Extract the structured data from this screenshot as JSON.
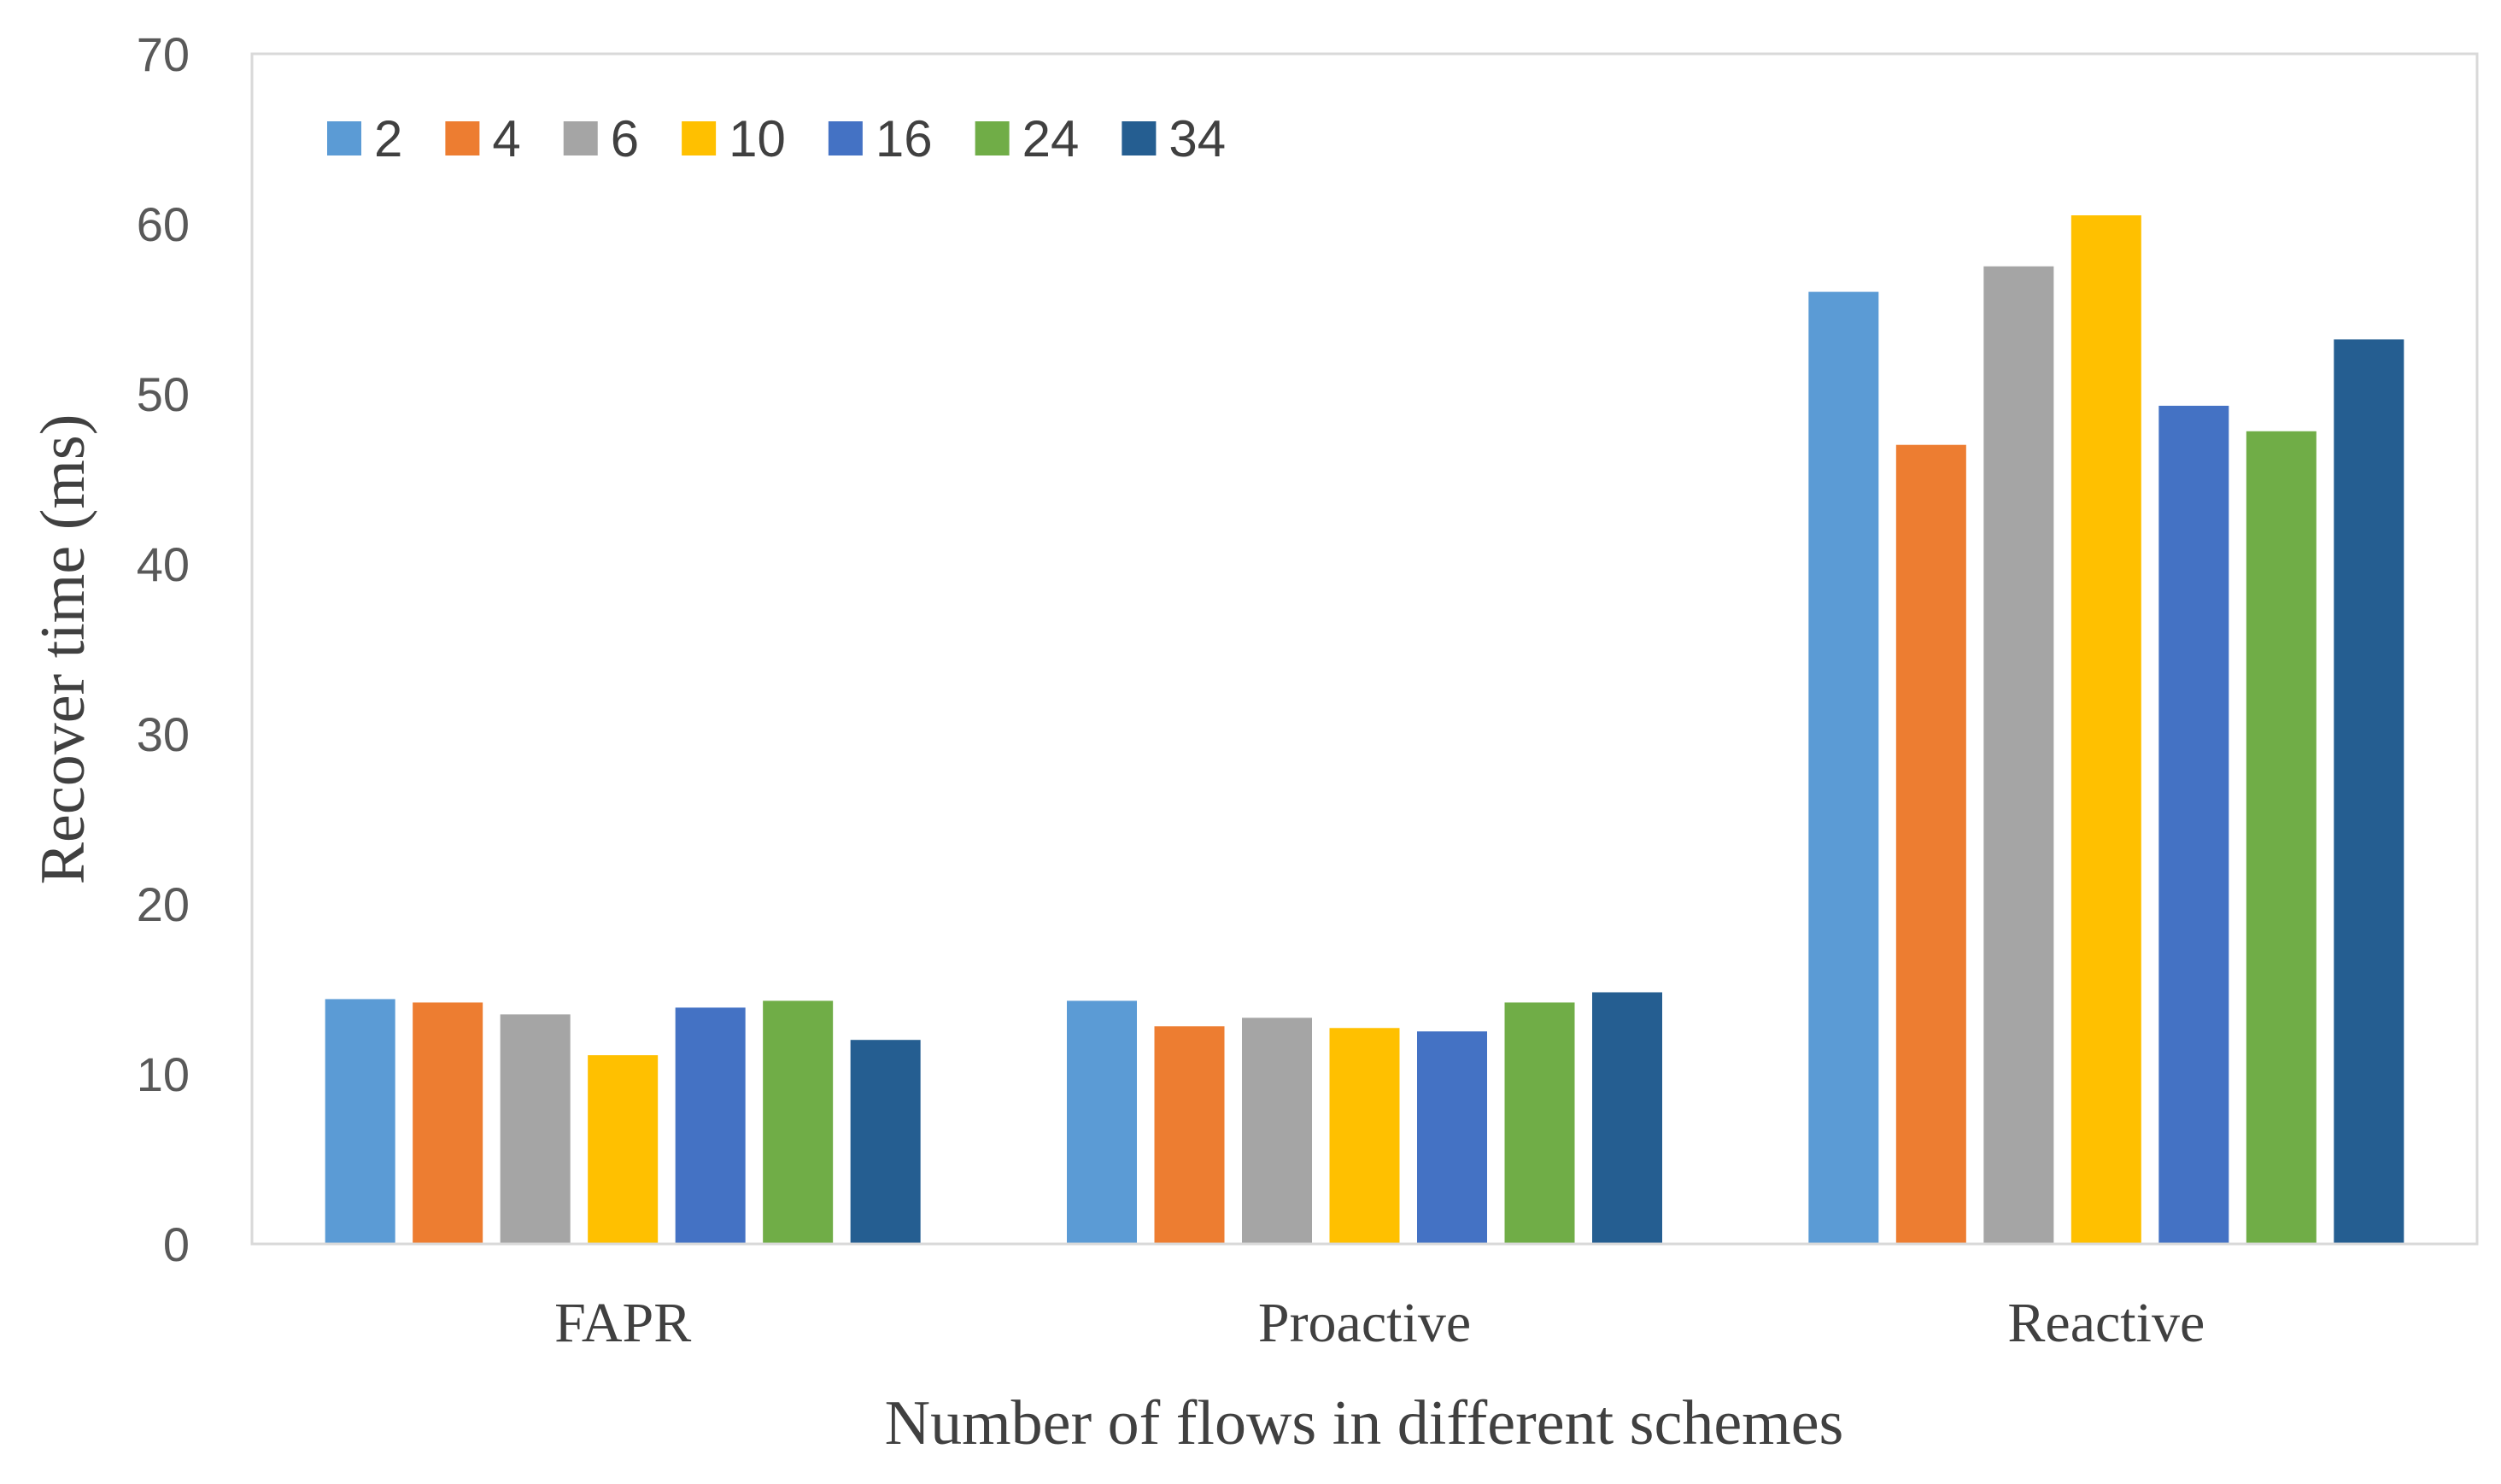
{
  "chart_data": {
    "type": "bar",
    "title": "",
    "xlabel": "Number of flows in different schemes",
    "ylabel": "Recover time (ms)",
    "ylim": [
      0,
      70
    ],
    "yticks": [
      0,
      10,
      20,
      30,
      40,
      50,
      60,
      70
    ],
    "grid": false,
    "legend_position": "top-left",
    "categories": [
      "FAPR",
      "Proactive",
      "Reactive"
    ],
    "series": [
      {
        "name": "2",
        "color": "#5B9BD5",
        "values": [
          14.4,
          14.3,
          56.0
        ]
      },
      {
        "name": "4",
        "color": "#ED7D31",
        "values": [
          14.2,
          12.8,
          47.0
        ]
      },
      {
        "name": "6",
        "color": "#A5A5A5",
        "values": [
          13.5,
          13.3,
          57.5
        ]
      },
      {
        "name": "10",
        "color": "#FFC000",
        "values": [
          11.1,
          12.7,
          60.5
        ]
      },
      {
        "name": "16",
        "color": "#4472C4",
        "values": [
          13.9,
          12.5,
          49.3
        ]
      },
      {
        "name": "24",
        "color": "#70AD47",
        "values": [
          14.3,
          14.2,
          47.8
        ]
      },
      {
        "name": "34",
        "color": "#255E91",
        "values": [
          12.0,
          14.8,
          53.2
        ]
      }
    ]
  }
}
